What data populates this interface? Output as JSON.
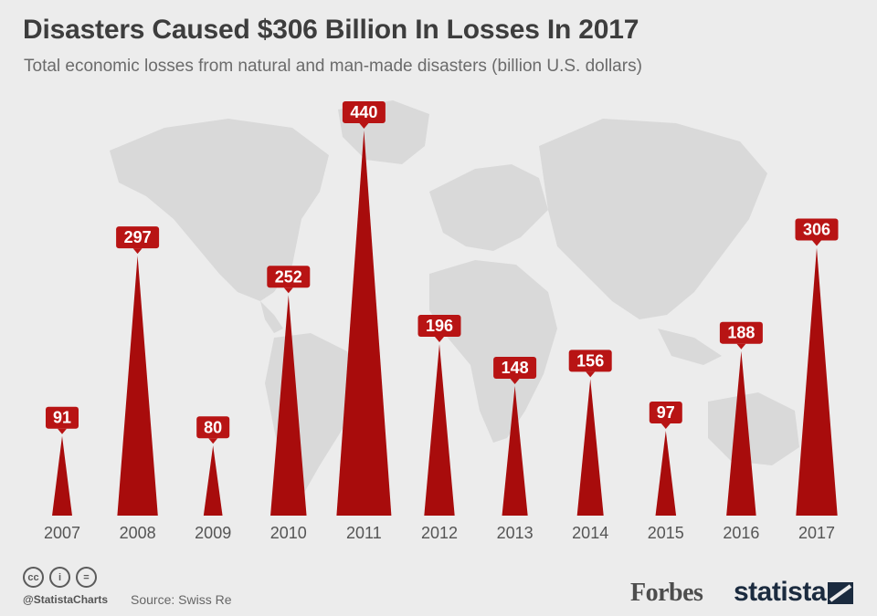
{
  "title": "Disasters Caused $306 Billion In Losses In 2017",
  "subtitle": "Total economic losses from natural and man-made disasters (billion U.S. dollars)",
  "footer": {
    "handle": "@StatistaCharts",
    "source": "Source: Swiss Re",
    "brand_forbes": "Forbes",
    "brand_statista": "statista",
    "license_icons": [
      "cc-icon",
      "by-icon",
      "nd-icon"
    ],
    "license_glyphs": [
      "cc",
      "i",
      "="
    ]
  },
  "colors": {
    "accent": "#a80c0c",
    "label_bg": "#b81414",
    "background": "#ececec",
    "map": "#d9d9d9"
  },
  "chart_data": {
    "type": "bar",
    "categories": [
      "2007",
      "2008",
      "2009",
      "2010",
      "2011",
      "2012",
      "2013",
      "2014",
      "2015",
      "2016",
      "2017"
    ],
    "values": [
      91,
      297,
      80,
      252,
      440,
      196,
      148,
      156,
      97,
      188,
      306
    ],
    "ylim": [
      0,
      440
    ],
    "grid": false,
    "legend": "none"
  }
}
